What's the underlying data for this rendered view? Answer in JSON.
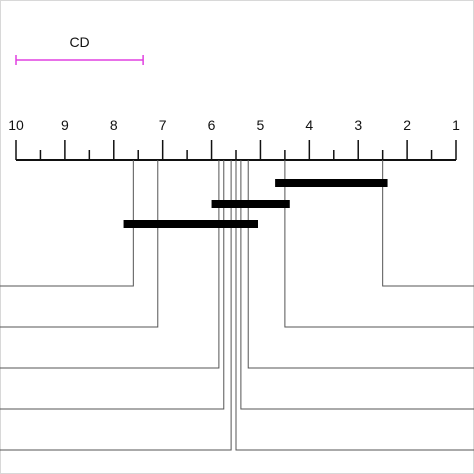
{
  "diagram": {
    "type": "critical-difference",
    "cd_label": "CD",
    "cd_value": 2.6,
    "axis": {
      "min": 1,
      "max": 10,
      "reversed": true,
      "minor_step": 0.5,
      "tick_labels": [
        "10",
        "9",
        "8",
        "7",
        "6",
        "5",
        "4",
        "3",
        "2",
        "1"
      ]
    },
    "methods": [
      {
        "rank": 7.6,
        "side": "left"
      },
      {
        "rank": 7.1,
        "side": "left"
      },
      {
        "rank": 5.85,
        "side": "left"
      },
      {
        "rank": 5.75,
        "side": "left"
      },
      {
        "rank": 5.6,
        "side": "left"
      },
      {
        "rank": 5.5,
        "side": "right"
      },
      {
        "rank": 5.4,
        "side": "right"
      },
      {
        "rank": 5.25,
        "side": "right"
      },
      {
        "rank": 4.5,
        "side": "right"
      },
      {
        "rank": 2.5,
        "side": "right"
      }
    ],
    "cliques": [
      {
        "from": 4.7,
        "to": 2.4
      },
      {
        "from": 6.0,
        "to": 4.4
      },
      {
        "from": 7.8,
        "to": 5.05
      }
    ],
    "colors": {
      "cd_bar": "#e040e0",
      "axis": "#111111",
      "connector": "#555555",
      "clique": "#000000",
      "frame": "#d8d8d8"
    }
  }
}
